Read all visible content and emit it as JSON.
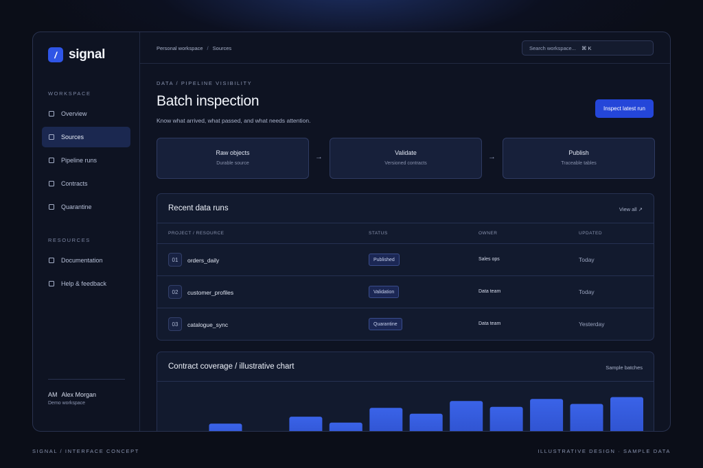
{
  "brand": {
    "name": "signal",
    "mark": "/"
  },
  "sidebar": {
    "workspace_label": "WORKSPACE",
    "workspace_items": [
      {
        "label": "Overview",
        "active": false
      },
      {
        "label": "Sources",
        "active": true
      },
      {
        "label": "Pipeline runs",
        "active": false
      },
      {
        "label": "Contracts",
        "active": false
      },
      {
        "label": "Quarantine",
        "active": false
      }
    ],
    "resources_label": "RESOURCES",
    "resource_items": [
      {
        "label": "Documentation"
      },
      {
        "label": "Help & feedback"
      }
    ],
    "user": {
      "initials": "AM",
      "name": "Alex Morgan",
      "workspace": "Demo workspace"
    }
  },
  "topbar": {
    "breadcrumb": [
      "Personal workspace",
      "Sources"
    ],
    "breadcrumb_sep": "/",
    "search_placeholder": "Search workspace...",
    "search_shortcut": "⌘ K"
  },
  "header": {
    "eyebrow": "DATA / PIPELINE VISIBILITY",
    "title": "Batch inspection",
    "subtitle": "Know what arrived, what passed, and what needs attention.",
    "primary_action": "Inspect latest run"
  },
  "pipeline": {
    "arrow": "→",
    "stages": [
      {
        "title": "Raw objects",
        "subtitle": "Durable source"
      },
      {
        "title": "Validate",
        "subtitle": "Versioned contracts"
      },
      {
        "title": "Publish",
        "subtitle": "Traceable tables"
      }
    ]
  },
  "runs": {
    "title": "Recent data runs",
    "view_all": "View all ↗",
    "columns": [
      "PROJECT / RESOURCE",
      "STATUS",
      "OWNER",
      "UPDATED"
    ],
    "rows": [
      {
        "index": "01",
        "resource": "orders_daily",
        "status": "Published",
        "owner": "Sales ops",
        "updated": "Today"
      },
      {
        "index": "02",
        "resource": "customer_profiles",
        "status": "Validation",
        "owner": "Data team",
        "updated": "Today"
      },
      {
        "index": "03",
        "resource": "catalogue_sync",
        "status": "Quarantine",
        "owner": "Data team",
        "updated": "Yesterday"
      }
    ]
  },
  "coverage": {
    "title": "Contract coverage / illustrative chart",
    "tag": "Sample batches"
  },
  "chart_data": {
    "type": "bar",
    "title": "Contract coverage / illustrative chart",
    "values": [
      6,
      25,
      15,
      32,
      26,
      41,
      35,
      48,
      42,
      50,
      45,
      52
    ],
    "color": "#3a63e8"
  },
  "footer": {
    "left": "SIGNAL / INTERFACE CONCEPT",
    "right": "ILLUSTRATIVE DESIGN · SAMPLE DATA"
  }
}
